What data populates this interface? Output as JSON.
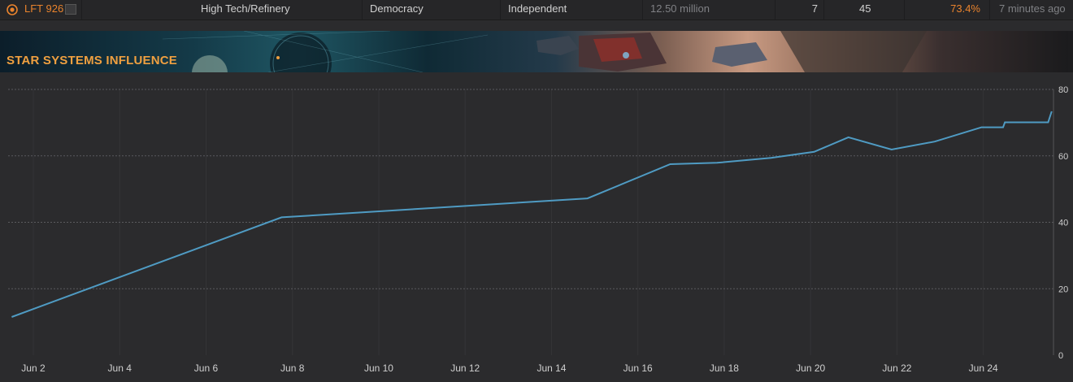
{
  "system_row": {
    "system_name": "LFT 926",
    "economy": "High Tech/Refinery",
    "government": "Democracy",
    "allegiance": "Independent",
    "population": "12.50 million",
    "col_a": "7",
    "col_b": "45",
    "influence": "73.4%",
    "updated": "7 minutes ago",
    "icons": {
      "system": "faction-emblem-icon",
      "link": "external-link-icon"
    },
    "colors": {
      "system_name": "#e9832d"
    }
  },
  "banner": {
    "title": "STAR SYSTEMS INFLUENCE",
    "title_color": "#f0a040"
  },
  "chart_data": {
    "type": "line",
    "title": "",
    "xlabel": "",
    "ylabel": "",
    "x_ticks": [
      "Jun 2",
      "Jun 4",
      "Jun 6",
      "Jun 8",
      "Jun 10",
      "Jun 12",
      "Jun 14",
      "Jun 16",
      "Jun 18",
      "Jun 20",
      "Jun 22",
      "Jun 24"
    ],
    "y_ticks": [
      0,
      20,
      40,
      60,
      80
    ],
    "ylim": [
      0,
      80
    ],
    "xlim": [
      "2024-06-01T10:00",
      "2024-06-25T15:00"
    ],
    "grid": true,
    "y_axis_position": "right",
    "line_color": "#4f9bc3",
    "series": [
      {
        "points": [
          {
            "x": "2024-06-01T12:00",
            "y": 11.5
          },
          {
            "x": "2024-06-07T18:00",
            "y": 41.5
          },
          {
            "x": "2024-06-14T20:00",
            "y": 47.2
          },
          {
            "x": "2024-06-16T18:00",
            "y": 57.5
          },
          {
            "x": "2024-06-17T20:00",
            "y": 57.9
          },
          {
            "x": "2024-06-19T02:00",
            "y": 59.4
          },
          {
            "x": "2024-06-20T02:00",
            "y": 61.2
          },
          {
            "x": "2024-06-20T21:00",
            "y": 65.6
          },
          {
            "x": "2024-06-21T21:00",
            "y": 61.9
          },
          {
            "x": "2024-06-22T21:00",
            "y": 64.3
          },
          {
            "x": "2024-06-23T23:00",
            "y": 68.6
          },
          {
            "x": "2024-06-24T11:00",
            "y": 68.6
          },
          {
            "x": "2024-06-24T12:00",
            "y": 70.1
          },
          {
            "x": "2024-06-25T12:00",
            "y": 70.1
          },
          {
            "x": "2024-06-25T14:00",
            "y": 73.4
          }
        ]
      }
    ]
  }
}
